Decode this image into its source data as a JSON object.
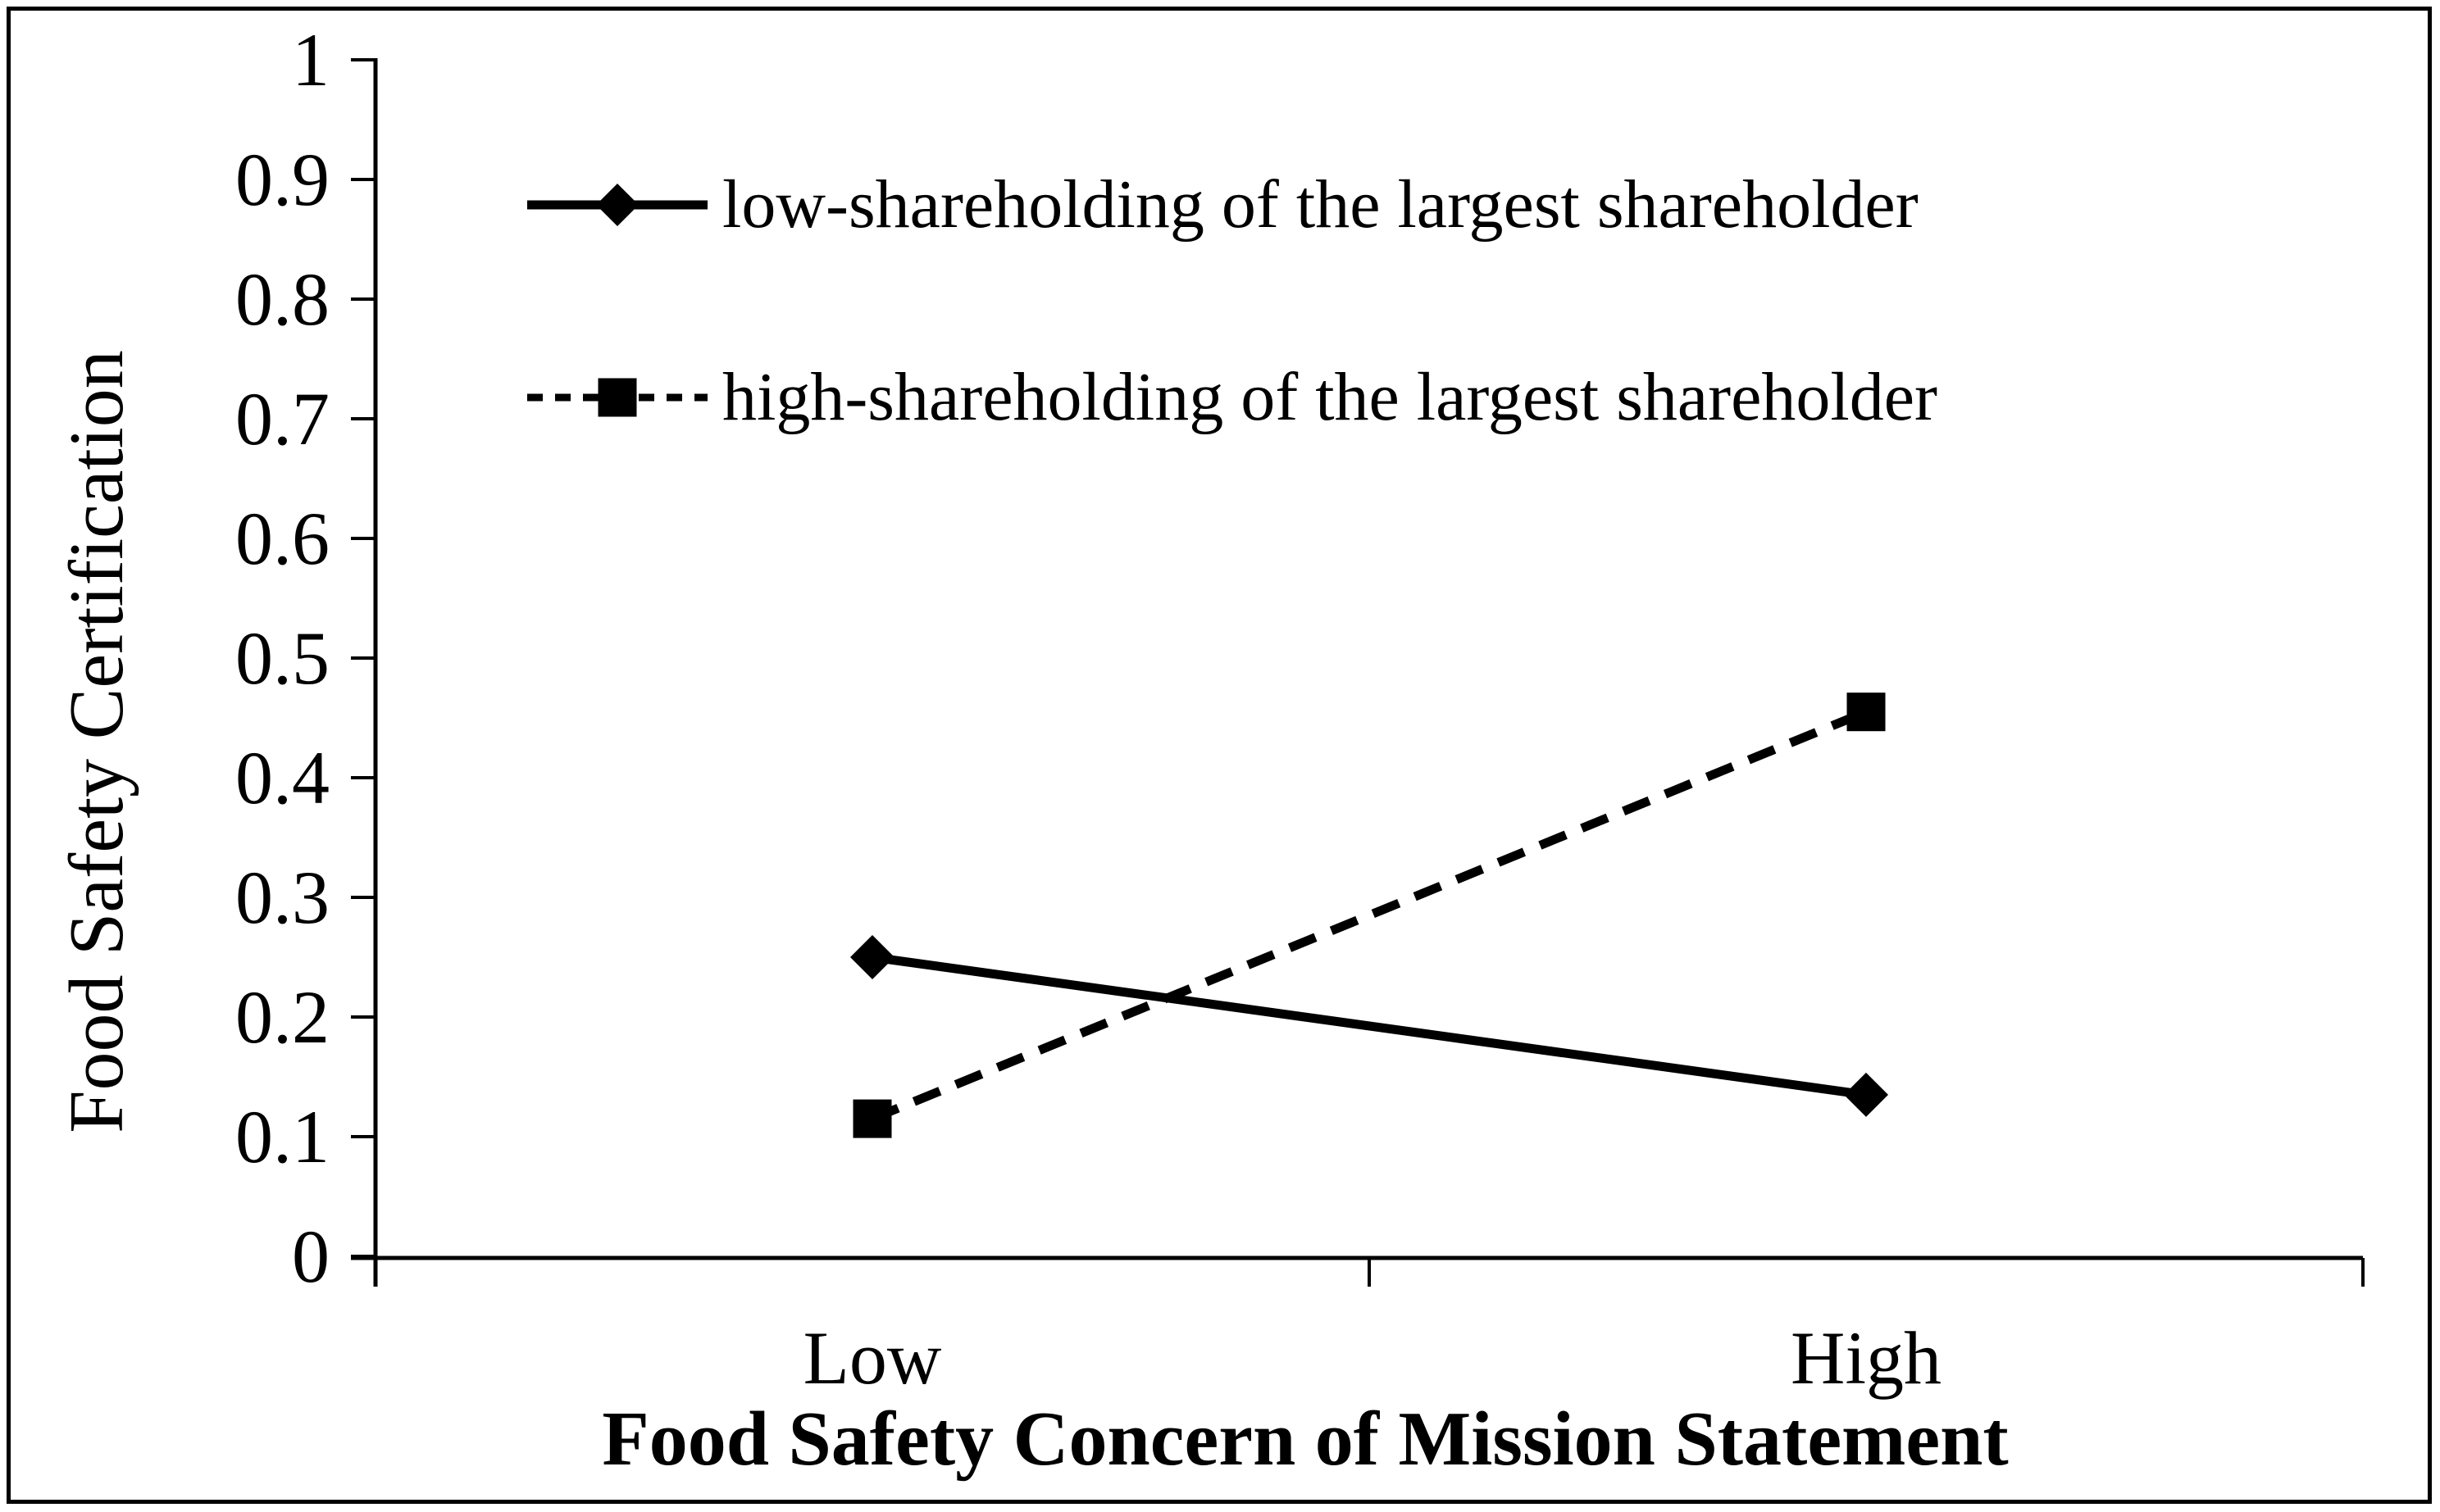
{
  "chart_data": {
    "type": "line",
    "title": "",
    "xlabel": "Food Safety Concern of Mission Statement",
    "ylabel": "Food Safety Certification",
    "categories": [
      "Low",
      "High"
    ],
    "series": [
      {
        "name": "low-shareholding of the largest shareholder",
        "marker": "diamond",
        "line_style": "solid",
        "values": [
          0.25,
          0.135
        ]
      },
      {
        "name": "high-shareholding of the largest shareholder",
        "marker": "square",
        "line_style": "dashed",
        "values": [
          0.115,
          0.455
        ]
      }
    ],
    "ylim": [
      0,
      1
    ],
    "y_ticks": [
      "1",
      "0.9",
      "0.8",
      "0.7",
      "0.6",
      "0.5",
      "0.4",
      "0.3",
      "0.2",
      "0.1",
      "0"
    ],
    "y_tick_values": [
      1,
      0.9,
      0.8,
      0.7,
      0.6,
      0.5,
      0.4,
      0.3,
      0.2,
      0.1,
      0
    ],
    "grid": false,
    "legend_position": "top-left-inside",
    "colors": {
      "foreground": "#000000",
      "background": "#ffffff"
    }
  }
}
